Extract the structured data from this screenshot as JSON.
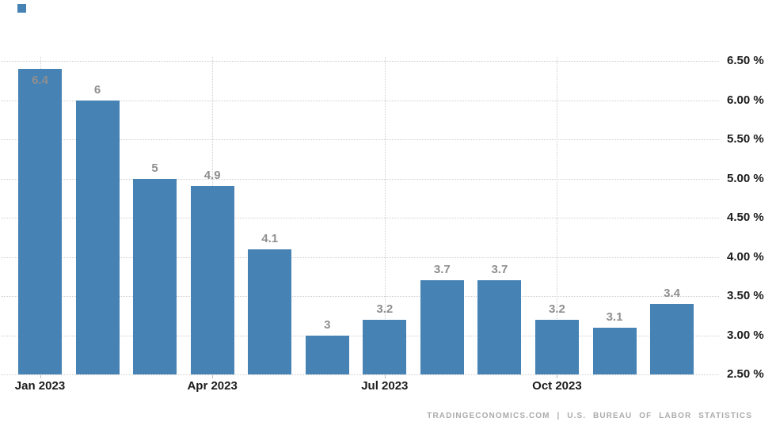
{
  "chart_data": {
    "type": "bar",
    "values": [
      6.4,
      6,
      5,
      4.9,
      4.1,
      3,
      3.2,
      3.7,
      3.7,
      3.2,
      3.1,
      3.4
    ],
    "bar_labels": [
      "6.4",
      "6",
      "5",
      "4.9",
      "4.1",
      "3",
      "3.2",
      "3.7",
      "3.7",
      "3.2",
      "3.1",
      "3.4"
    ],
    "x_ticks": [
      {
        "bar_index": 0,
        "label": "Jan 2023"
      },
      {
        "bar_index": 3,
        "label": "Apr 2023"
      },
      {
        "bar_index": 6,
        "label": "Jul 2023"
      },
      {
        "bar_index": 9,
        "label": "Oct 2023"
      }
    ],
    "y_ticks": [
      {
        "value": 6.5,
        "label": "6.50 %"
      },
      {
        "value": 6.0,
        "label": "6.00 %"
      },
      {
        "value": 5.5,
        "label": "5.50 %"
      },
      {
        "value": 5.0,
        "label": "5.00 %"
      },
      {
        "value": 4.5,
        "label": "4.50 %"
      },
      {
        "value": 4.0,
        "label": "4.00 %"
      },
      {
        "value": 3.5,
        "label": "3.50 %"
      },
      {
        "value": 3.0,
        "label": "3.00 %"
      },
      {
        "value": 2.5,
        "label": "2.50 %"
      }
    ],
    "ylim": [
      2.5,
      6.5
    ],
    "grid": {
      "horizontal": "dotted",
      "vertical": "dotted at quarter ticks",
      "y_axis_side": "right"
    },
    "title": "",
    "xlabel": "",
    "ylabel": ""
  },
  "footer": {
    "attribution": "TRADINGECONOMICS.COM | U.S. BUREAU OF LABOR STATISTICS"
  },
  "colors": {
    "background": "#ffffff",
    "bar": "#4682b4",
    "bar_value_label": "#8f8f8f",
    "axis_label": "#1b1b1b",
    "gridline": "#cfcfcf",
    "tick": "#bdbdbd",
    "attribution": "#ababab"
  }
}
